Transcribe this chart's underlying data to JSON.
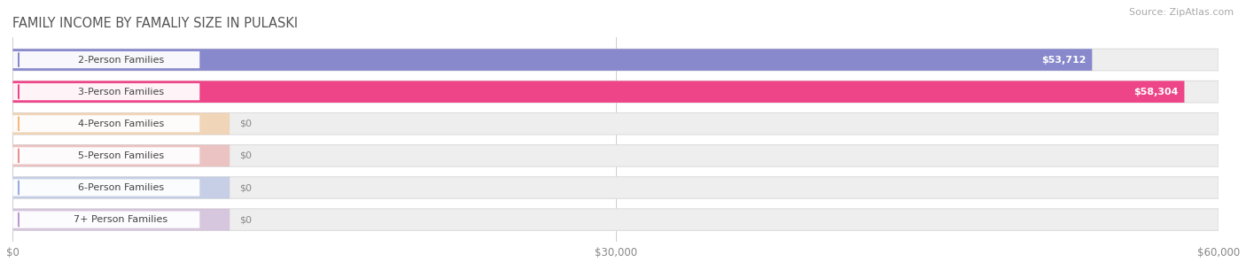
{
  "title": "FAMILY INCOME BY FAMALIY SIZE IN PULASKI",
  "source": "Source: ZipAtlas.com",
  "categories": [
    "2-Person Families",
    "3-Person Families",
    "4-Person Families",
    "5-Person Families",
    "6-Person Families",
    "7+ Person Families"
  ],
  "values": [
    53712,
    58304,
    0,
    0,
    0,
    0
  ],
  "bar_colors": [
    "#8888cc",
    "#ee4488",
    "#f5b87a",
    "#e89090",
    "#99aadd",
    "#bb99cc"
  ],
  "value_labels": [
    "$53,712",
    "$58,304",
    "$0",
    "$0",
    "$0",
    "$0"
  ],
  "xlim": [
    0,
    60000
  ],
  "xticks": [
    0,
    30000,
    60000
  ],
  "xticklabels": [
    "$0",
    "$30,000",
    "$60,000"
  ],
  "bg_color": "#ffffff",
  "bar_bg_color": "#eeeeee",
  "title_fontsize": 10.5,
  "source_fontsize": 8,
  "label_fontsize": 8,
  "value_fontsize": 8
}
